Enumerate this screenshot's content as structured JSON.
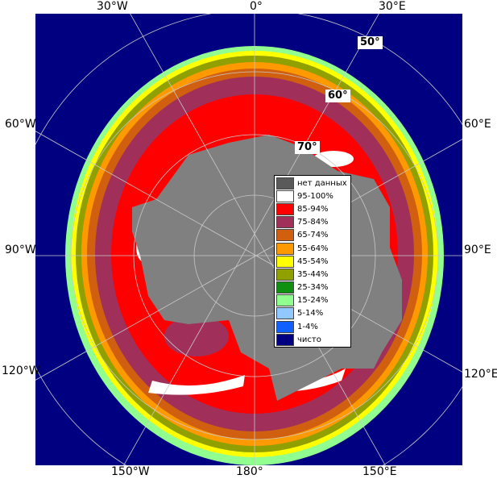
{
  "map": {
    "longitude_labels": {
      "top": [
        "30°W",
        "0°",
        "30°E"
      ],
      "left": [
        "60°W",
        "90°W",
        "120°W"
      ],
      "right": [
        "60°E",
        "90°E",
        "120°E"
      ],
      "bottom": [
        "150°W",
        "180°",
        "150°E"
      ]
    },
    "latitude_labels": [
      "50°",
      "60°",
      "70°"
    ],
    "legend": [
      {
        "label": "нет данных",
        "color": "#5a5a5a"
      },
      {
        "label": "95-100%",
        "color": "#ffffff"
      },
      {
        "label": "85-94%",
        "color": "#ff0000"
      },
      {
        "label": "75-84%",
        "color": "#a0305a"
      },
      {
        "label": "65-74%",
        "color": "#d06010"
      },
      {
        "label": "55-64%",
        "color": "#ff9900"
      },
      {
        "label": "45-54%",
        "color": "#ffff00"
      },
      {
        "label": "35-44%",
        "color": "#8fa000"
      },
      {
        "label": "25-34%",
        "color": "#109010"
      },
      {
        "label": "15-24%",
        "color": "#90ff90"
      },
      {
        "label": "5-14%",
        "color": "#90c8ff"
      },
      {
        "label": "1-4%",
        "color": "#1060ff"
      },
      {
        "label": "чисто",
        "color": "#000080"
      }
    ]
  }
}
